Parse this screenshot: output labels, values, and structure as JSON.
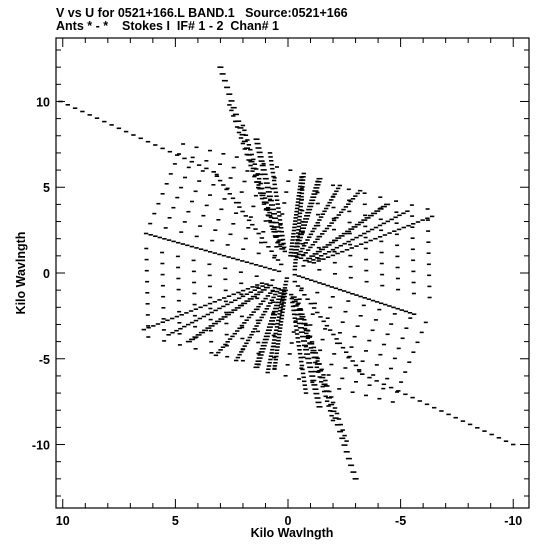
{
  "header": {
    "line1": "V vs U for 0521+166.L BAND.1   Source:0521+166",
    "line2": "Ants * - *    Stokes I  IF# 1 - 2  Chan# 1"
  },
  "chart_data": {
    "type": "scatter",
    "xlabel": "Kilo Wavlngth",
    "ylabel": "Kilo Wavlngth",
    "xlim": [
      10.3,
      -10.7
    ],
    "ylim": [
      -13.7,
      13.7
    ],
    "x_reversed": true,
    "xticks": [
      10,
      5,
      0,
      -5,
      -10
    ],
    "yticks": [
      10,
      5,
      0,
      -5,
      -10
    ],
    "xtick_labels": [
      "10",
      "5",
      "0",
      "-5",
      "-10"
    ],
    "ytick_labels": [
      "10",
      "5",
      "0",
      "-5",
      "-10"
    ],
    "grid": false,
    "legend": "none",
    "marker": "short horizontal dash",
    "color": "#000000",
    "series": [
      {
        "description": "uv track segments (u, v in kilo-wavelengths); each track has a mirror track at (-u, -v)",
        "tracks": [
          {
            "start": [
              -0.3,
              0.2
            ],
            "end": [
              -0.7,
              5.8
            ],
            "n": 30
          },
          {
            "start": [
              0.05,
              -0.3
            ],
            "end": [
              0.9,
              -5.8
            ],
            "n": 30
          },
          {
            "start": [
              6.3,
              2.3
            ],
            "end": [
              0.4,
              0.1
            ],
            "n": 30
          },
          {
            "start": [
              -5.6,
              -2.4
            ],
            "end": [
              -0.3,
              -0.1
            ],
            "n": 30
          },
          {
            "start": [
              10.1,
              10.0
            ],
            "end": [
              3.3,
              5.9
            ],
            "n": 22
          },
          {
            "start": [
              -10.0,
              -10.0
            ],
            "end": [
              -3.3,
              -5.9
            ],
            "n": 22
          },
          {
            "start": [
              3.3,
              5.9
            ],
            "end": [
              0.3,
              0.5
            ],
            "n": 22
          },
          {
            "start": [
              -3.3,
              -5.9
            ],
            "end": [
              -0.3,
              -0.5
            ],
            "n": 22
          }
        ],
        "rotation_set": {
          "center": [
            0.0,
            0.0
          ],
          "angle_range_deg": [
            -55,
            60
          ],
          "radius_range": [
            1.0,
            12.3
          ],
          "arms": [
            {
              "u": 3.0,
              "v": 12.0
            },
            {
              "u": 2.6,
              "v": 9.8
            },
            {
              "u": 2.0,
              "v": 8.6
            },
            {
              "u": 1.4,
              "v": 7.8
            },
            {
              "u": 0.8,
              "v": 7.0
            },
            {
              "u": -0.6,
              "v": 5.6
            },
            {
              "u": -1.4,
              "v": 5.5
            },
            {
              "u": -2.3,
              "v": 5.1
            },
            {
              "u": -3.2,
              "v": 4.8
            },
            {
              "u": -4.4,
              "v": 4.0
            },
            {
              "u": -5.3,
              "v": 3.6
            },
            {
              "u": -6.4,
              "v": 3.3
            }
          ]
        }
      }
    ]
  }
}
